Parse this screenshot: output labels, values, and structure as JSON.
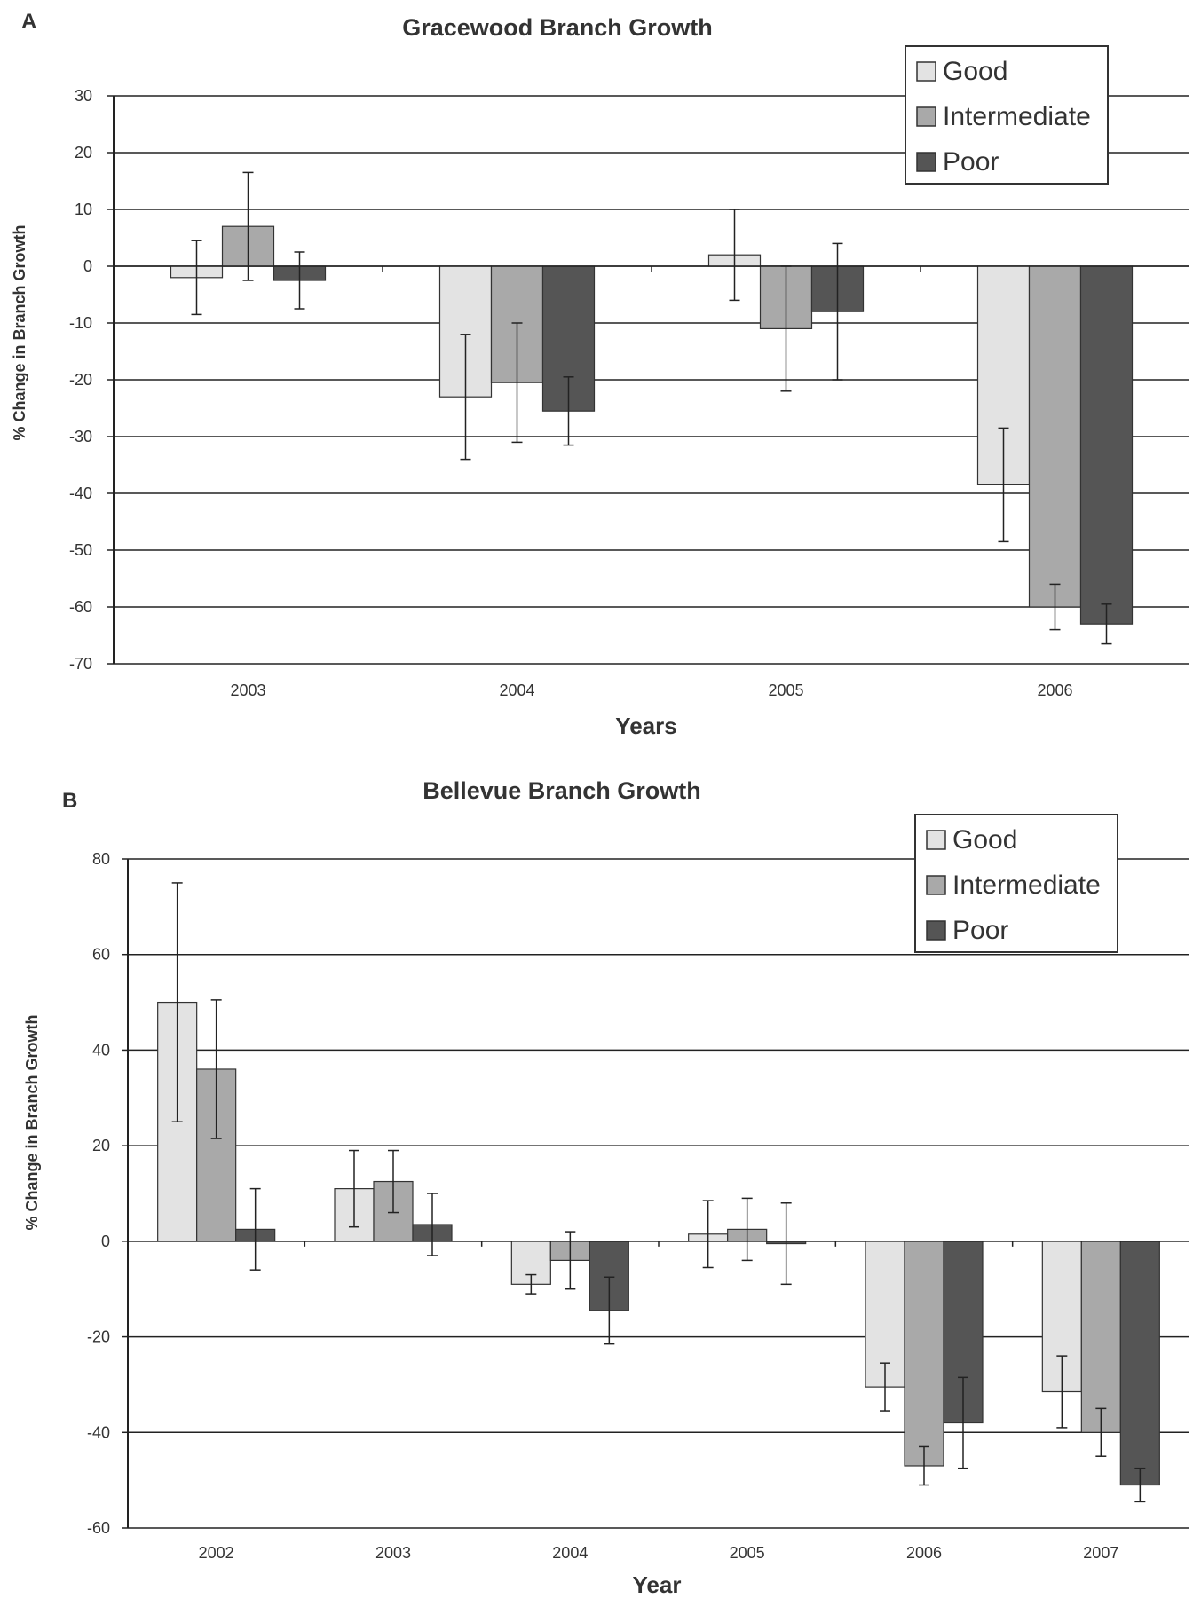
{
  "figure": {
    "panel_a_letter": "A",
    "panel_b_letter": "B"
  },
  "chart_data": [
    {
      "type": "bar",
      "title": "Gracewood Branch Growth",
      "xlabel": "Years",
      "ylabel": "% Change in Branch Growth",
      "ylim": [
        -70,
        30
      ],
      "yticks": [
        30,
        20,
        10,
        0,
        -10,
        -20,
        -30,
        -40,
        -50,
        -60,
        -70
      ],
      "grid": true,
      "legend_position": "top-right",
      "categories": [
        "2003",
        "2004",
        "2005",
        "2006"
      ],
      "series": [
        {
          "name": "Good",
          "color": "#e3e3e3",
          "values": [
            -2,
            -23,
            2,
            -38.5
          ],
          "errors": [
            6.5,
            11,
            8,
            10
          ]
        },
        {
          "name": "Intermediate",
          "color": "#a9a9a9",
          "values": [
            7,
            -20.5,
            -11,
            -60
          ],
          "errors": [
            9.5,
            10.5,
            11,
            4
          ]
        },
        {
          "name": "Poor",
          "color": "#555555",
          "values": [
            -2.5,
            -25.5,
            -8,
            -63
          ],
          "errors": [
            5,
            6,
            12,
            3.5
          ]
        }
      ]
    },
    {
      "type": "bar",
      "title": "Bellevue Branch Growth",
      "xlabel": "Year",
      "ylabel": "% Change in Branch Growth",
      "ylim": [
        -60,
        80
      ],
      "yticks": [
        80,
        60,
        40,
        20,
        0,
        -20,
        -40,
        -60
      ],
      "grid": true,
      "legend_position": "top-right",
      "categories": [
        "2002",
        "2003",
        "2004",
        "2005",
        "2006",
        "2007"
      ],
      "series": [
        {
          "name": "Good",
          "color": "#e3e3e3",
          "values": [
            50,
            11,
            -9,
            1.5,
            -30.5,
            -31.5
          ],
          "errors": [
            25,
            8,
            2,
            7,
            5,
            7.5
          ]
        },
        {
          "name": "Intermediate",
          "color": "#a9a9a9",
          "values": [
            36,
            12.5,
            -4,
            2.5,
            -47,
            -40
          ],
          "errors": [
            14.5,
            6.5,
            6,
            6.5,
            4,
            5
          ]
        },
        {
          "name": "Poor",
          "color": "#555555",
          "values": [
            2.5,
            3.5,
            -14.5,
            -0.5,
            -38,
            -51
          ],
          "errors": [
            8.5,
            6.5,
            7,
            8.5,
            9.5,
            3.5
          ]
        }
      ]
    }
  ]
}
